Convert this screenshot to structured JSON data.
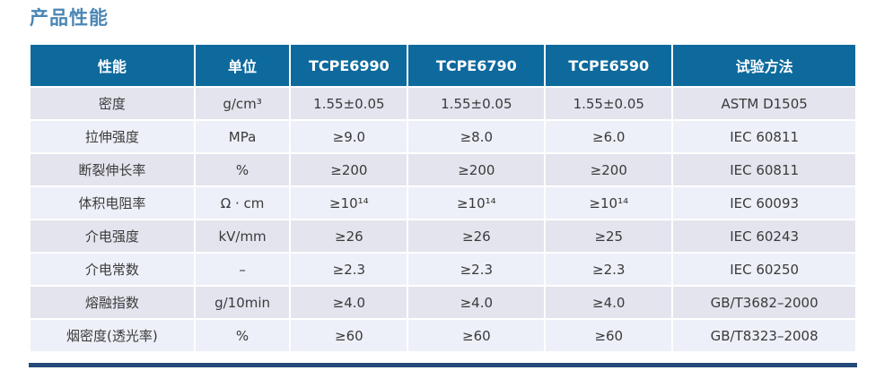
{
  "page": {
    "title": "产品性能"
  },
  "colors": {
    "title_text": "#4a86b5",
    "header_bg": "#0e6a9d",
    "header_text": "#ffffff",
    "row_odd_bg": "#e4e4ef",
    "row_even_bg": "#edf0f8",
    "cell_text": "#3a3a3a",
    "bottom_bar": "#24497a"
  },
  "table": {
    "columns": [
      "性能",
      "单位",
      "TCPE6990",
      "TCPE6790",
      "TCPE6590",
      "试验方法"
    ],
    "rows": [
      [
        "密度",
        "g/cm³",
        "1.55±0.05",
        "1.55±0.05",
        "1.55±0.05",
        "ASTM D1505"
      ],
      [
        "拉伸强度",
        "MPa",
        "≥9.0",
        "≥8.0",
        "≥6.0",
        "IEC 60811"
      ],
      [
        "断裂伸长率",
        "%",
        "≥200",
        "≥200",
        "≥200",
        "IEC 60811"
      ],
      [
        "体积电阻率",
        "Ω · cm",
        "≥10¹⁴",
        "≥10¹⁴",
        "≥10¹⁴",
        "IEC 60093"
      ],
      [
        "介电强度",
        "kV/mm",
        "≥26",
        "≥26",
        "≥25",
        "IEC 60243"
      ],
      [
        "介电常数",
        "–",
        "≥2.3",
        "≥2.3",
        "≥2.3",
        "IEC 60250"
      ],
      [
        "熔融指数",
        "g/10min",
        "≥4.0",
        "≥4.0",
        "≥4.0",
        "GB/T3682–2000"
      ],
      [
        "烟密度(透光率)",
        "%",
        "≥60",
        "≥60",
        "≥60",
        "GB/T8323–2008"
      ]
    ]
  }
}
